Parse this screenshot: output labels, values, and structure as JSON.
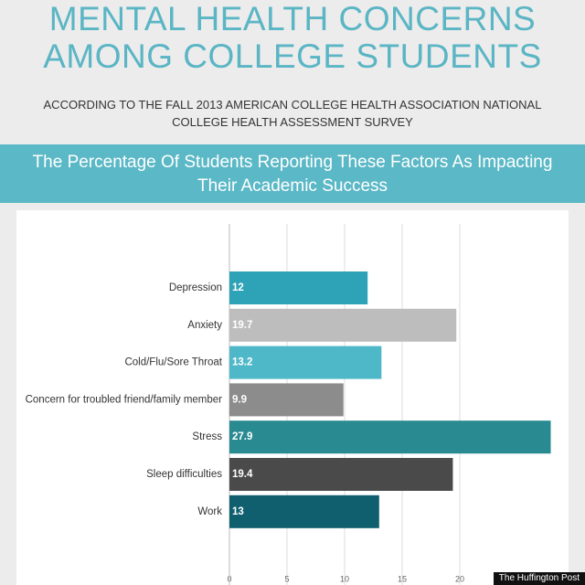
{
  "chart_data": {
    "type": "bar",
    "orientation": "horizontal",
    "title": "MENTAL HEALTH CONCERNS AMONG COLLEGE STUDENTS",
    "subtitle": "ACCORDING TO THE FALL 2013 AMERICAN COLLEGE HEALTH ASSOCIATION NATIONAL COLLEGE HEALTH ASSESSMENT SURVEY",
    "chart_title": "The Percentage Of Students Reporting These Factors As Impacting Their Academic Success",
    "categories": [
      "Depression",
      "Anxiety",
      "Cold/Flu/Sore Throat",
      "Concern for troubled friend/family member",
      "Stress",
      "Sleep difficulties",
      "Work"
    ],
    "values": [
      12,
      19.7,
      13.2,
      9.9,
      27.9,
      19.4,
      13
    ],
    "colors": [
      "#2ea3b7",
      "#bdbdbd",
      "#4fb8c8",
      "#8c8c8c",
      "#2a8a92",
      "#4a4a4a",
      "#0f5f6e"
    ],
    "xlim": [
      0,
      30
    ],
    "xticks": [
      0,
      5,
      10,
      15,
      20
    ],
    "grid": true,
    "watermark": "The Huffington Post"
  }
}
